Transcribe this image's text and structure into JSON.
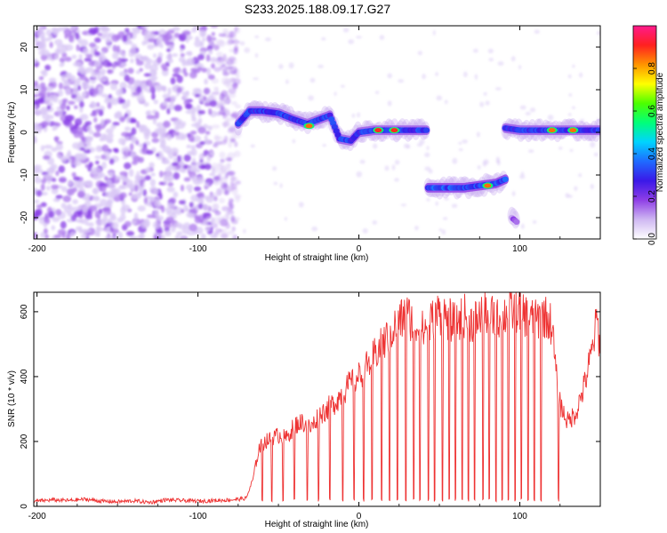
{
  "figure_title": "S233.2025.188.09.17.G27",
  "chart_data": [
    {
      "type": "heatmap",
      "xlabel": "Height of straight line (km)",
      "ylabel": "Frequency (Hz)",
      "xlim": [
        -202,
        150
      ],
      "ylim": [
        -25,
        25
      ],
      "xticks": [
        -200,
        -100,
        0,
        100
      ],
      "yticks": [
        -20,
        -10,
        0,
        10,
        20
      ],
      "colorbar": {
        "label": "Normalized spectral amplitude",
        "range": [
          0,
          1
        ],
        "ticks": [
          "0.0",
          "0.2",
          "0.4",
          "0.6",
          "0.8"
        ],
        "tick_values": [
          0,
          0.2,
          0.4,
          0.6,
          0.8
        ],
        "colors": [
          "#ffffff",
          "#cfb8f2",
          "#8f3fe6",
          "#3a18e8",
          "#1f6bff",
          "#00d4ff",
          "#00ff7a",
          "#4cff00",
          "#ffff00",
          "#ff9400",
          "#ff2020",
          "#ff1a8c"
        ]
      },
      "noise_region": {
        "x": [
          -202,
          -75
        ],
        "freq": [
          -25,
          25
        ],
        "level": 0.05
      },
      "tracks": [
        {
          "x": [
            -75,
            -68,
            -60,
            -50,
            -40,
            -32,
            -25,
            -18,
            -12,
            -5,
            0,
            10,
            20,
            30,
            42
          ],
          "freq": [
            2,
            5,
            5,
            4.5,
            3,
            2,
            3,
            4,
            -1.5,
            -2,
            0,
            0.5,
            0.5,
            0.5,
            0.5
          ],
          "amplitude": 0.25
        },
        {
          "x": [
            43,
            55,
            65,
            75,
            85,
            91
          ],
          "freq": [
            -13,
            -13,
            -13,
            -12.5,
            -12,
            -11
          ],
          "amplitude": 0.28
        },
        {
          "x": [
            91,
            100,
            110,
            120,
            130,
            140,
            150
          ],
          "freq": [
            1,
            0.5,
            0.5,
            0.5,
            0.5,
            0.5,
            0.5
          ],
          "amplitude": 0.25
        },
        {
          "x": [
            95,
            98
          ],
          "freq": [
            -20,
            -21
          ],
          "amplitude": 0.1
        }
      ],
      "peaks": [
        {
          "x": -31,
          "freq": 1.5,
          "amplitude": 0.85
        },
        {
          "x": 12,
          "freq": 0.5,
          "amplitude": 0.9
        },
        {
          "x": 22,
          "freq": 0.5,
          "amplitude": 0.9
        },
        {
          "x": 80,
          "freq": -12.5,
          "amplitude": 0.85
        },
        {
          "x": 120,
          "freq": 0.5,
          "amplitude": 0.85
        },
        {
          "x": 133,
          "freq": 0.5,
          "amplitude": 0.85
        }
      ]
    },
    {
      "type": "line",
      "xlabel": "Height of straight line (km)",
      "ylabel": "SNR (10 * v/v)",
      "xlim": [
        -202,
        150
      ],
      "ylim": [
        0,
        660
      ],
      "xticks": [
        -200,
        -100,
        0,
        100
      ],
      "yticks": [
        0,
        200,
        400,
        600
      ],
      "series": [
        {
          "color": "#ee3333",
          "x": [
            -202,
            -190,
            -180,
            -170,
            -160,
            -150,
            -140,
            -130,
            -120,
            -110,
            -100,
            -90,
            -80,
            -75,
            -70,
            -66,
            -62,
            -58,
            -54,
            -50,
            -45,
            -40,
            -35,
            -30,
            -25,
            -20,
            -15,
            -10,
            -5,
            0,
            5,
            10,
            15,
            20,
            25,
            30,
            35,
            40,
            45,
            50,
            55,
            60,
            65,
            70,
            75,
            80,
            85,
            90,
            95,
            100,
            105,
            110,
            115,
            120,
            123,
            126,
            130,
            135,
            140,
            145,
            148,
            150
          ],
          "y": [
            15,
            20,
            18,
            22,
            16,
            14,
            17,
            12,
            20,
            18,
            16,
            18,
            20,
            22,
            25,
            80,
            180,
            200,
            210,
            220,
            210,
            250,
            260,
            240,
            280,
            300,
            320,
            350,
            380,
            400,
            430,
            470,
            500,
            540,
            570,
            590,
            560,
            540,
            570,
            600,
            580,
            560,
            590,
            570,
            580,
            600,
            570,
            590,
            600,
            610,
            580,
            570,
            590,
            560,
            380,
            300,
            260,
            290,
            370,
            480,
            580,
            470
          ]
        }
      ],
      "dropouts_x": [
        -60,
        -54,
        -47,
        -40,
        -32,
        -25,
        -18,
        -10,
        -3,
        3,
        8,
        14,
        19,
        24,
        29,
        34,
        38,
        43,
        47,
        52,
        56,
        60,
        64,
        68,
        72,
        77,
        81,
        85,
        89,
        93,
        97,
        101,
        105,
        109,
        113,
        124
      ]
    }
  ]
}
